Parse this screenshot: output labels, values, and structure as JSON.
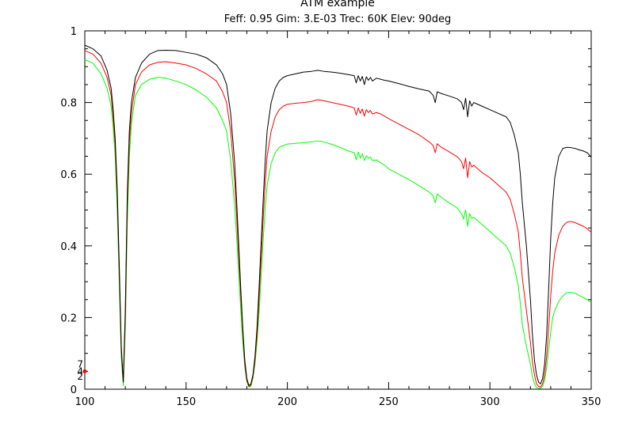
{
  "chart_data": {
    "type": "line",
    "title": "ATM example",
    "subtitle": "Feff: 0.95 Gim: 3.E-03 Trec: 60K Elev: 90deg",
    "xlim": [
      100,
      350
    ],
    "ylim": [
      0,
      1
    ],
    "xticks": [
      100,
      150,
      200,
      250,
      300,
      350
    ],
    "yticks": [
      0,
      0.2,
      0.4,
      0.6,
      0.8,
      1
    ],
    "xtick_labels": [
      "100",
      "150",
      "200",
      "250",
      "300",
      "350"
    ],
    "ytick_labels": [
      "0",
      "0.2",
      "0.4",
      "0.6",
      "0.8",
      "1"
    ],
    "grid": false,
    "left_markers": [
      {
        "label": "7",
        "y": 0.07
      },
      {
        "label": "4",
        "y": 0.05
      },
      {
        "label": "2",
        "y": 0.035
      }
    ],
    "series": [
      {
        "color": "#000000",
        "x": [
          100,
          104,
          108,
          111,
          113,
          114,
          115,
          116,
          117,
          118,
          119,
          120,
          121,
          122,
          123,
          125,
          128,
          132,
          136,
          140,
          145,
          150,
          155,
          160,
          165,
          168,
          170,
          172,
          174,
          175,
          176,
          177,
          178,
          179,
          180,
          181,
          182,
          183,
          184,
          185,
          186,
          187,
          188,
          189,
          190,
          192,
          194,
          196,
          198,
          200,
          204,
          208,
          212,
          215,
          218,
          222,
          226,
          230,
          233,
          234,
          235,
          236,
          237,
          238,
          239,
          240,
          241,
          242,
          244,
          246,
          248,
          250,
          255,
          260,
          265,
          270,
          272,
          273,
          274,
          276,
          280,
          284,
          286,
          287,
          288,
          289,
          290,
          291,
          292,
          294,
          296,
          300,
          304,
          308,
          310,
          312,
          314,
          315,
          316,
          318,
          320,
          321,
          322,
          323,
          324,
          325,
          326,
          327,
          328,
          329,
          330,
          331,
          332,
          334,
          336,
          338,
          340,
          342,
          344,
          346,
          348,
          350
        ],
        "y": [
          0.96,
          0.95,
          0.93,
          0.89,
          0.84,
          0.78,
          0.7,
          0.56,
          0.35,
          0.12,
          0.02,
          0.22,
          0.55,
          0.72,
          0.8,
          0.87,
          0.91,
          0.935,
          0.945,
          0.946,
          0.945,
          0.94,
          0.935,
          0.925,
          0.905,
          0.88,
          0.85,
          0.77,
          0.63,
          0.52,
          0.4,
          0.28,
          0.17,
          0.08,
          0.03,
          0.01,
          0.015,
          0.04,
          0.09,
          0.17,
          0.28,
          0.4,
          0.52,
          0.63,
          0.72,
          0.8,
          0.84,
          0.86,
          0.87,
          0.875,
          0.88,
          0.885,
          0.887,
          0.89,
          0.887,
          0.885,
          0.882,
          0.878,
          0.875,
          0.855,
          0.875,
          0.86,
          0.873,
          0.85,
          0.872,
          0.862,
          0.87,
          0.86,
          0.868,
          0.865,
          0.862,
          0.86,
          0.853,
          0.845,
          0.838,
          0.832,
          0.82,
          0.8,
          0.83,
          0.825,
          0.818,
          0.81,
          0.8,
          0.78,
          0.812,
          0.76,
          0.805,
          0.79,
          0.8,
          0.795,
          0.79,
          0.78,
          0.77,
          0.76,
          0.745,
          0.71,
          0.66,
          0.6,
          0.52,
          0.4,
          0.25,
          0.15,
          0.08,
          0.04,
          0.02,
          0.015,
          0.03,
          0.07,
          0.15,
          0.28,
          0.42,
          0.52,
          0.59,
          0.65,
          0.672,
          0.675,
          0.674,
          0.672,
          0.668,
          0.665,
          0.66,
          0.648
        ]
      },
      {
        "color": "#ff0000",
        "x": [
          100,
          104,
          108,
          111,
          113,
          114,
          115,
          116,
          117,
          118,
          119,
          120,
          121,
          122,
          123,
          125,
          128,
          132,
          136,
          140,
          145,
          150,
          155,
          160,
          165,
          168,
          170,
          172,
          174,
          175,
          176,
          177,
          178,
          179,
          180,
          181,
          182,
          183,
          184,
          185,
          186,
          187,
          188,
          189,
          190,
          192,
          194,
          196,
          198,
          200,
          204,
          208,
          212,
          215,
          218,
          222,
          226,
          230,
          233,
          234,
          235,
          236,
          237,
          238,
          239,
          240,
          241,
          242,
          244,
          246,
          248,
          250,
          255,
          260,
          265,
          270,
          272,
          273,
          274,
          276,
          280,
          284,
          286,
          287,
          288,
          289,
          290,
          291,
          292,
          294,
          296,
          300,
          304,
          308,
          310,
          312,
          314,
          315,
          316,
          318,
          320,
          321,
          322,
          323,
          324,
          325,
          326,
          327,
          328,
          329,
          330,
          331,
          332,
          334,
          336,
          338,
          340,
          342,
          344,
          346,
          348,
          350
        ],
        "y": [
          0.945,
          0.935,
          0.91,
          0.87,
          0.82,
          0.76,
          0.68,
          0.54,
          0.33,
          0.11,
          0.02,
          0.2,
          0.52,
          0.69,
          0.77,
          0.85,
          0.885,
          0.905,
          0.912,
          0.914,
          0.91,
          0.905,
          0.895,
          0.88,
          0.86,
          0.83,
          0.8,
          0.72,
          0.58,
          0.48,
          0.37,
          0.26,
          0.16,
          0.07,
          0.025,
          0.008,
          0.012,
          0.035,
          0.08,
          0.15,
          0.25,
          0.36,
          0.47,
          0.57,
          0.65,
          0.72,
          0.76,
          0.78,
          0.79,
          0.795,
          0.798,
          0.8,
          0.803,
          0.808,
          0.805,
          0.8,
          0.795,
          0.79,
          0.785,
          0.765,
          0.785,
          0.77,
          0.782,
          0.762,
          0.78,
          0.772,
          0.778,
          0.768,
          0.772,
          0.768,
          0.762,
          0.755,
          0.74,
          0.725,
          0.71,
          0.69,
          0.68,
          0.66,
          0.685,
          0.675,
          0.662,
          0.648,
          0.635,
          0.615,
          0.645,
          0.59,
          0.635,
          0.62,
          0.625,
          0.615,
          0.605,
          0.59,
          0.57,
          0.55,
          0.53,
          0.49,
          0.44,
          0.38,
          0.31,
          0.22,
          0.13,
          0.075,
          0.04,
          0.015,
          0.008,
          0.006,
          0.015,
          0.04,
          0.09,
          0.17,
          0.26,
          0.33,
          0.38,
          0.43,
          0.455,
          0.466,
          0.468,
          0.465,
          0.46,
          0.455,
          0.448,
          0.438
        ]
      },
      {
        "color": "#00ff00",
        "x": [
          100,
          104,
          108,
          111,
          113,
          114,
          115,
          116,
          117,
          118,
          119,
          120,
          121,
          122,
          123,
          125,
          128,
          132,
          136,
          140,
          145,
          150,
          155,
          160,
          165,
          168,
          170,
          172,
          174,
          175,
          176,
          177,
          178,
          179,
          180,
          181,
          182,
          183,
          184,
          185,
          186,
          187,
          188,
          189,
          190,
          192,
          194,
          196,
          198,
          200,
          204,
          208,
          212,
          215,
          218,
          222,
          226,
          230,
          233,
          234,
          235,
          236,
          237,
          238,
          239,
          240,
          241,
          242,
          244,
          246,
          248,
          250,
          255,
          260,
          265,
          270,
          272,
          273,
          274,
          276,
          280,
          284,
          286,
          287,
          288,
          289,
          290,
          291,
          292,
          294,
          296,
          300,
          304,
          308,
          310,
          312,
          314,
          315,
          316,
          318,
          320,
          321,
          322,
          323,
          324,
          325,
          326,
          327,
          328,
          329,
          330,
          331,
          332,
          334,
          336,
          338,
          340,
          342,
          344,
          346,
          348,
          350
        ],
        "y": [
          0.92,
          0.91,
          0.88,
          0.84,
          0.79,
          0.73,
          0.65,
          0.5,
          0.3,
          0.09,
          0.01,
          0.17,
          0.47,
          0.65,
          0.74,
          0.82,
          0.85,
          0.865,
          0.87,
          0.868,
          0.86,
          0.85,
          0.835,
          0.815,
          0.785,
          0.75,
          0.72,
          0.64,
          0.51,
          0.42,
          0.32,
          0.22,
          0.13,
          0.06,
          0.02,
          0.006,
          0.008,
          0.03,
          0.07,
          0.13,
          0.21,
          0.31,
          0.41,
          0.5,
          0.57,
          0.63,
          0.66,
          0.675,
          0.68,
          0.684,
          0.686,
          0.688,
          0.69,
          0.693,
          0.69,
          0.683,
          0.675,
          0.665,
          0.66,
          0.64,
          0.662,
          0.645,
          0.657,
          0.638,
          0.652,
          0.644,
          0.648,
          0.638,
          0.64,
          0.632,
          0.625,
          0.615,
          0.6,
          0.585,
          0.568,
          0.55,
          0.54,
          0.52,
          0.545,
          0.535,
          0.52,
          0.505,
          0.49,
          0.475,
          0.5,
          0.455,
          0.49,
          0.477,
          0.48,
          0.47,
          0.46,
          0.44,
          0.42,
          0.4,
          0.38,
          0.34,
          0.29,
          0.24,
          0.18,
          0.12,
          0.07,
          0.035,
          0.015,
          0.005,
          0.003,
          0.002,
          0.008,
          0.025,
          0.06,
          0.11,
          0.16,
          0.2,
          0.22,
          0.245,
          0.26,
          0.27,
          0.27,
          0.268,
          0.262,
          0.256,
          0.25,
          0.242
        ]
      }
    ]
  }
}
